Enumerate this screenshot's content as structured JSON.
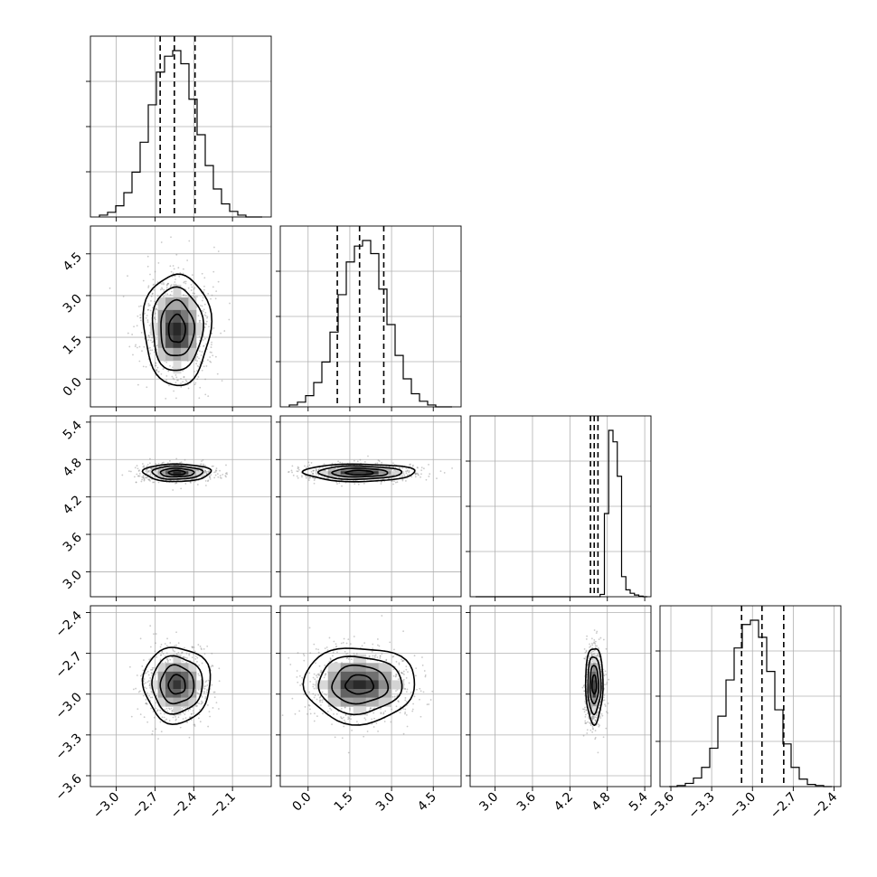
{
  "chart_data": {
    "type": "corner",
    "title": "",
    "n_params": 4,
    "grid": true,
    "axes": [
      {
        "name": "",
        "range": [
          -3.2,
          -1.8
        ],
        "ticks": [
          -3.0,
          -2.7,
          -2.4,
          -2.1
        ],
        "tick_labels": [
          "−3.0",
          "−2.7",
          "−2.4",
          "−2.1"
        ],
        "median": -2.55,
        "q16": -2.66,
        "q84": -2.39
      },
      {
        "name": "",
        "range": [
          -1.0,
          5.5
        ],
        "ticks": [
          0.0,
          1.5,
          3.0,
          4.5
        ],
        "tick_labels": [
          "0.0",
          "1.5",
          "3.0",
          "4.5"
        ],
        "median": 1.85,
        "q16": 1.05,
        "q84": 2.72
      },
      {
        "name": "",
        "range": [
          2.6,
          5.5
        ],
        "ticks": [
          3.0,
          3.6,
          4.2,
          4.8,
          5.4
        ],
        "tick_labels": [
          "3.0",
          "3.6",
          "4.2",
          "4.8",
          "5.4"
        ],
        "median": 4.59,
        "q16": 4.53,
        "q84": 4.65
      },
      {
        "name": "",
        "range": [
          -3.68,
          -2.35
        ],
        "ticks": [
          -3.6,
          -3.3,
          -3.0,
          -2.7,
          -2.4
        ],
        "tick_labels": [
          "−3.6",
          "−3.3",
          "−3.0",
          "−2.7",
          "−2.4"
        ],
        "median": -2.93,
        "q16": -3.08,
        "q84": -2.77
      }
    ],
    "marginals": [
      {
        "param": 0,
        "bin_counts": [
          2,
          5,
          12,
          26,
          48,
          80,
          120,
          155,
          172,
          178,
          164,
          126,
          88,
          55,
          30,
          14,
          6,
          2,
          0,
          0
        ]
      },
      {
        "param": 1,
        "bin_counts": [
          2,
          5,
          12,
          26,
          48,
          80,
          120,
          155,
          172,
          178,
          164,
          126,
          88,
          55,
          30,
          14,
          6,
          2,
          0,
          0
        ]
      },
      {
        "param": 2,
        "bin_counts": [
          0,
          0,
          0,
          0,
          0,
          0,
          0,
          0,
          0,
          0,
          0,
          0,
          0,
          0,
          0,
          0,
          0,
          0,
          0,
          0,
          0,
          0,
          0,
          0,
          0,
          0,
          0,
          0,
          0,
          4,
          145,
          290,
          270,
          210,
          35,
          12,
          6,
          3,
          1,
          0
        ]
      },
      {
        "param": 3,
        "bin_counts": [
          0,
          1,
          3,
          8,
          18,
          36,
          66,
          100,
          130,
          152,
          156,
          140,
          108,
          72,
          40,
          18,
          7,
          2,
          1,
          0
        ]
      }
    ],
    "pairs": [
      {
        "x": 0,
        "y": 1,
        "center": [
          -2.53,
          1.8
        ],
        "sigma": [
          0.13,
          1.0
        ],
        "corr": 0.0
      },
      {
        "x": 0,
        "y": 2,
        "center": [
          -2.53,
          4.59
        ],
        "sigma": [
          0.13,
          0.07
        ],
        "corr": 0.0
      },
      {
        "x": 1,
        "y": 2,
        "center": [
          1.85,
          4.59
        ],
        "sigma": [
          1.0,
          0.07
        ],
        "corr": 0.0
      },
      {
        "x": 0,
        "y": 3,
        "center": [
          -2.53,
          -2.93
        ],
        "sigma": [
          0.13,
          0.14
        ],
        "corr": 0.0
      },
      {
        "x": 1,
        "y": 3,
        "center": [
          1.85,
          -2.93
        ],
        "sigma": [
          1.0,
          0.14
        ],
        "corr": 0.0
      },
      {
        "x": 2,
        "y": 3,
        "center": [
          4.59,
          -2.93
        ],
        "sigma": [
          0.07,
          0.14
        ],
        "corr": 0.0
      }
    ],
    "contour_levels_sigma": [
      0.5,
      1.0,
      1.5,
      2.0
    ]
  }
}
